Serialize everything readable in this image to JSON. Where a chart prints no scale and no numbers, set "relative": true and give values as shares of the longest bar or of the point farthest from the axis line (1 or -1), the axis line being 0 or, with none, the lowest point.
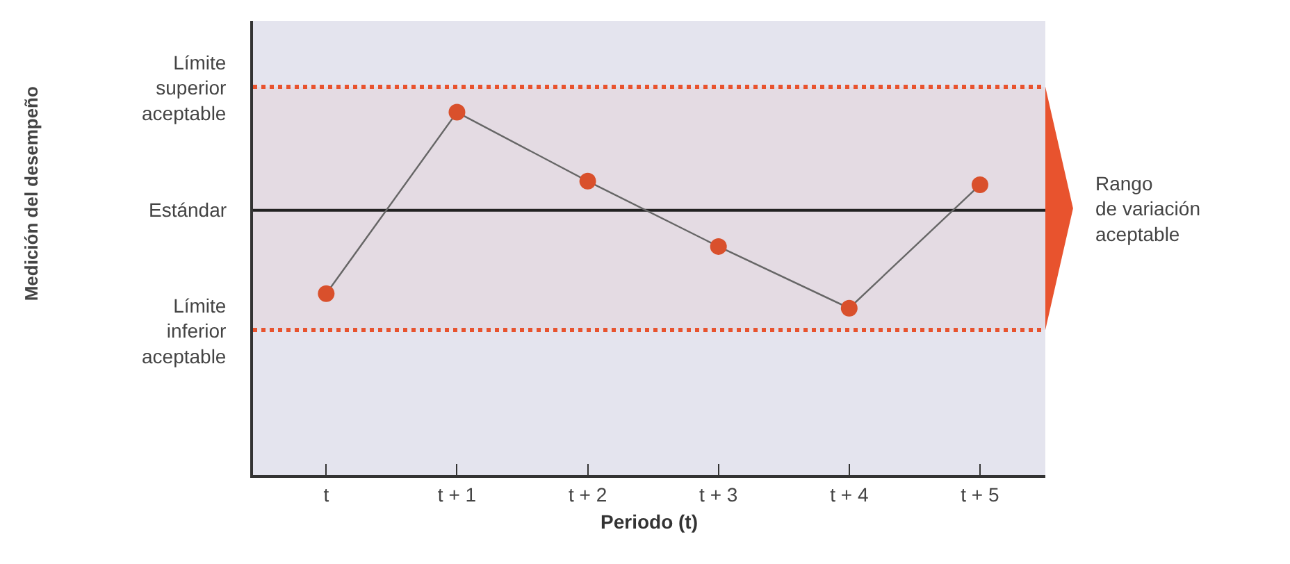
{
  "chart_data": {
    "type": "line",
    "relative": true,
    "xlabel": "Periodo (t)",
    "annotations": [
      "Medición del desempeño"
    ],
    "categories": [
      "t",
      "t + 1",
      "t + 2",
      "t + 3",
      "t + 4",
      "t + 5"
    ],
    "series": [
      {
        "color": "#d9502c",
        "values": [
          0.5,
          1,
          0.81,
          0.63,
          0.46,
          0.8
        ]
      }
    ],
    "marker": "circle",
    "line_style": "solid",
    "ref_lines": [
      {
        "axis": "y",
        "value": 1.07,
        "label": "Límite superior aceptable",
        "color": "#e8532e",
        "line_style": "dotted"
      },
      {
        "axis": "y",
        "value": 0.73,
        "label": "Estándar",
        "color": "#222222",
        "line_style": "solid"
      },
      {
        "axis": "y",
        "value": 0.4,
        "label": "Límite inferior aceptable",
        "color": "#e8532e",
        "line_style": "dotted"
      }
    ],
    "bands": [
      {
        "axis": "y",
        "from": 0.4,
        "to": 1.07,
        "label": "Rango de variación aceptable",
        "color": "#e8532e"
      }
    ]
  }
}
